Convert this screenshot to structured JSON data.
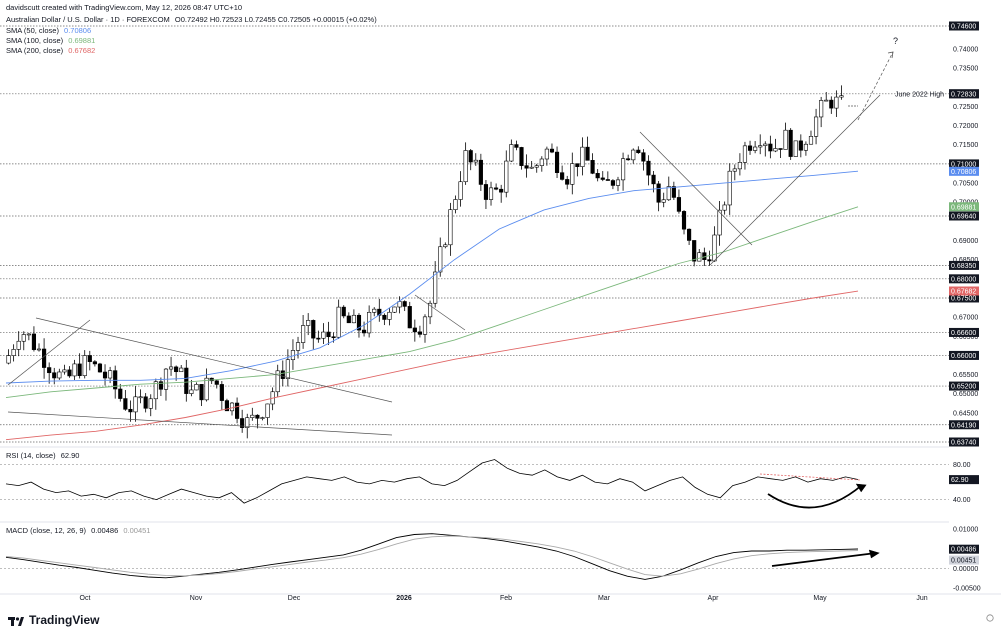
{
  "header": {
    "attribution": "davidscutt created with TradingView.com, May 12, 2026 08:47 UTC+10",
    "symbol_line": "Australian Dollar / U.S. Dollar · 1D · FOREXCOM",
    "ohlc": "O0.72492 H0.72523 L0.72455 C0.72505 +0.00015 (+0.02%)",
    "sma50_label": "SMA (50, close)",
    "sma50_value": "0.70806",
    "sma100_label": "SMA (100, close)",
    "sma100_value": "0.69881",
    "sma200_label": "SMA (200, close)",
    "sma200_value": "0.67682"
  },
  "rsi_header": {
    "label": "RSI (14, close)",
    "value": "62.90"
  },
  "macd_header": {
    "label": "MACD (close, 12, 26, 9)",
    "value1": "0.00486",
    "value2": "0.00451"
  },
  "annotations": {
    "question": "?",
    "june_2022_high": "June 2022 High"
  },
  "footer": {
    "brand": "TradingView"
  },
  "colors": {
    "up_candle": "#ffffff",
    "down_candle": "#000000",
    "sma50": "#5b8def",
    "sma100": "#7cb87c",
    "sma200": "#e06666",
    "rsi_line": "#000000",
    "macd_line": "#000000",
    "signal_line": "#aaaaaa",
    "axis_text": "#131722"
  },
  "chart_data": [
    {
      "type": "candlestick",
      "title": "Australian Dollar / U.S. Dollar · 1D · FOREXCOM",
      "ylim": [
        0.6374,
        0.746
      ],
      "x_labels": [
        "Oct",
        "Nov",
        "Dec",
        "2026",
        "Feb",
        "Mar",
        "Apr",
        "May",
        "Jun"
      ],
      "y_ticks": [
        "0.74000",
        "0.73500",
        "0.72500",
        "0.72000",
        "0.71500",
        "0.70500",
        "0.70000",
        "0.69000",
        "0.68500",
        "0.67000",
        "0.66500",
        "0.65500",
        "0.65000",
        "0.64500"
      ],
      "horizontal_levels": [
        "0.74600",
        "0.72830",
        "0.71000",
        "0.69640",
        "0.68350",
        "0.68000",
        "0.67500",
        "0.66600",
        "0.66000",
        "0.65200",
        "0.64190",
        "0.63740"
      ],
      "highlighted_values": [
        {
          "label": "0.70806",
          "color": "#5b8def"
        },
        {
          "label": "0.69881",
          "color": "#7cb87c"
        },
        {
          "label": "0.67682",
          "color": "#e06666"
        },
        {
          "label": "0.72830",
          "color": "#131722"
        },
        {
          "label": "0.63740",
          "color": "#131722"
        }
      ],
      "close_anchors": [
        0.66,
        0.667,
        0.664,
        0.66,
        0.656,
        0.653,
        0.657,
        0.658,
        0.656,
        0.653,
        0.648,
        0.646,
        0.649,
        0.652,
        0.658,
        0.655,
        0.65,
        0.651,
        0.654,
        0.648,
        0.646,
        0.642,
        0.645,
        0.65,
        0.656,
        0.662,
        0.667,
        0.664,
        0.665,
        0.67,
        0.668,
        0.667,
        0.67,
        0.672,
        0.674,
        0.669,
        0.668,
        0.674,
        0.688,
        0.7,
        0.712,
        0.708,
        0.702,
        0.703,
        0.713,
        0.711,
        0.708,
        0.714,
        0.711,
        0.707,
        0.712,
        0.71,
        0.703,
        0.706,
        0.712,
        0.717,
        0.708,
        0.7,
        0.705,
        0.693,
        0.686,
        0.685,
        0.691,
        0.704,
        0.712,
        0.716,
        0.718,
        0.714,
        0.717,
        0.713,
        0.718,
        0.723,
        0.727,
        0.725
      ],
      "series": [
        {
          "name": "SMA (50, close)",
          "values": [
            0.6528,
            0.6533,
            0.6535,
            0.6535,
            0.654,
            0.656,
            0.6585,
            0.662,
            0.668,
            0.676,
            0.685,
            0.693,
            0.698,
            0.701,
            0.703,
            0.704,
            0.705,
            0.706,
            0.707,
            0.7081
          ]
        },
        {
          "name": "SMA (100, close)",
          "values": [
            0.649,
            0.6505,
            0.6515,
            0.6525,
            0.653,
            0.654,
            0.655,
            0.657,
            0.659,
            0.661,
            0.664,
            0.668,
            0.672,
            0.676,
            0.68,
            0.684,
            0.687,
            0.691,
            0.695,
            0.6988
          ]
        },
        {
          "name": "SMA (200, close)",
          "values": [
            0.638,
            0.6392,
            0.6402,
            0.6418,
            0.6438,
            0.6462,
            0.649,
            0.6515,
            0.654,
            0.6565,
            0.659,
            0.661,
            0.663,
            0.665,
            0.667,
            0.669,
            0.671,
            0.673,
            0.675,
            0.6768
          ]
        }
      ]
    },
    {
      "type": "line",
      "title": "RSI (14, close)",
      "ylim": [
        20,
        90
      ],
      "y_ticks": [
        "80.00",
        "40.00"
      ],
      "current_value": "62.90",
      "values": [
        58,
        56,
        60,
        52,
        48,
        50,
        44,
        46,
        42,
        48,
        50,
        44,
        40,
        46,
        52,
        48,
        44,
        42,
        48,
        36,
        42,
        50,
        58,
        62,
        66,
        64,
        62,
        66,
        60,
        58,
        62,
        60,
        64,
        66,
        58,
        56,
        62,
        72,
        82,
        86,
        76,
        70,
        68,
        74,
        66,
        62,
        68,
        60,
        58,
        64,
        60,
        50,
        56,
        62,
        66,
        54,
        46,
        42,
        56,
        60,
        66,
        64,
        62,
        66,
        60,
        64,
        62,
        66,
        63
      ]
    },
    {
      "type": "line",
      "title": "MACD (close, 12, 26, 9)",
      "ylim": [
        -0.0055,
        0.011
      ],
      "y_ticks": [
        "0.01000",
        "0.00000",
        "-0.00500"
      ],
      "series": [
        {
          "name": "MACD",
          "values": [
            0.0028,
            0.0022,
            0.0015,
            0.0008,
            0.0002,
            -0.0005,
            -0.0012,
            -0.0018,
            -0.0022,
            -0.0024,
            -0.002,
            -0.0015,
            -0.001,
            -0.0004,
            0.0003,
            0.001,
            0.0016,
            0.0022,
            0.0028,
            0.0034,
            0.0046,
            0.0062,
            0.0078,
            0.0086,
            0.0088,
            0.0084,
            0.008,
            0.0076,
            0.007,
            0.0062,
            0.0054,
            0.0044,
            0.003,
            0.0012,
            -0.0006,
            -0.002,
            -0.0028,
            -0.002,
            -0.0004,
            0.0014,
            0.003,
            0.004,
            0.0044,
            0.0044,
            0.0046,
            0.0046,
            0.0047,
            0.0048,
            0.0049
          ]
        },
        {
          "name": "Signal",
          "values": [
            0.003,
            0.0026,
            0.002,
            0.0014,
            0.0008,
            0.0002,
            -0.0004,
            -0.001,
            -0.0015,
            -0.0018,
            -0.0019,
            -0.0017,
            -0.0013,
            -0.0008,
            -0.0002,
            0.0004,
            0.001,
            0.0016,
            0.0021,
            0.0027,
            0.0036,
            0.0048,
            0.0062,
            0.0074,
            0.008,
            0.0082,
            0.008,
            0.0078,
            0.0074,
            0.0068,
            0.0062,
            0.0054,
            0.0044,
            0.003,
            0.0014,
            -0.0002,
            -0.0016,
            -0.002,
            -0.0014,
            -0.0002,
            0.0012,
            0.0024,
            0.0032,
            0.0037,
            0.004,
            0.0042,
            0.0043,
            0.0044,
            0.0045
          ]
        }
      ]
    }
  ]
}
